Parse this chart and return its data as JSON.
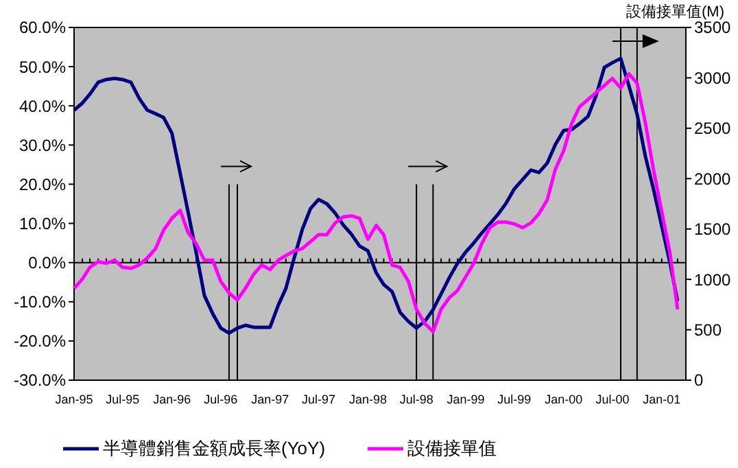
{
  "chart_data": {
    "type": "line",
    "y2label": "設備接單值(M)",
    "legend": "bottom",
    "line_style": "solid",
    "x": [
      "1995-01",
      "1995-02",
      "1995-03",
      "1995-04",
      "1995-05",
      "1995-06",
      "1995-07",
      "1995-08",
      "1995-09",
      "1995-10",
      "1995-11",
      "1995-12",
      "1996-01",
      "1996-02",
      "1996-03",
      "1996-04",
      "1996-05",
      "1996-06",
      "1996-07",
      "1996-08",
      "1996-09",
      "1996-10",
      "1996-11",
      "1996-12",
      "1997-01",
      "1997-02",
      "1997-03",
      "1997-04",
      "1997-05",
      "1997-06",
      "1997-07",
      "1997-08",
      "1997-09",
      "1997-10",
      "1997-11",
      "1997-12",
      "1998-01",
      "1998-02",
      "1998-03",
      "1998-04",
      "1998-05",
      "1998-06",
      "1998-07",
      "1998-08",
      "1998-09",
      "1998-10",
      "1998-11",
      "1998-12",
      "1999-01",
      "1999-02",
      "1999-03",
      "1999-04",
      "1999-05",
      "1999-06",
      "1999-07",
      "1999-08",
      "1999-09",
      "1999-10",
      "1999-11",
      "1999-12",
      "2000-01",
      "2000-02",
      "2000-03",
      "2000-04",
      "2000-05",
      "2000-06",
      "2000-07",
      "2000-08",
      "2000-09",
      "2000-10",
      "2000-11",
      "2000-12",
      "2001-01",
      "2001-02",
      "2001-03"
    ],
    "xlim": [
      "1995-01",
      "2001-04"
    ],
    "xticks": [
      {
        "value": "1995-01",
        "label": "Jan-95"
      },
      {
        "value": "1995-07",
        "label": "Jul-95"
      },
      {
        "value": "1996-01",
        "label": "Jan-96"
      },
      {
        "value": "1996-07",
        "label": "Jul-96"
      },
      {
        "value": "1997-01",
        "label": "Jan-97"
      },
      {
        "value": "1997-07",
        "label": "Jul-97"
      },
      {
        "value": "1998-01",
        "label": "Jan-98"
      },
      {
        "value": "1998-07",
        "label": "Jul-98"
      },
      {
        "value": "1999-01",
        "label": "Jan-99"
      },
      {
        "value": "1999-07",
        "label": "Jul-99"
      },
      {
        "value": "2000-01",
        "label": "Jan-00"
      },
      {
        "value": "2000-07",
        "label": "Jul-00"
      },
      {
        "value": "2001-01",
        "label": "Jan-01"
      }
    ],
    "ylim": [
      -30,
      60
    ],
    "yticks": [
      {
        "value": -30,
        "label": "-30.0%"
      },
      {
        "value": -20,
        "label": "-20.0%"
      },
      {
        "value": -10,
        "label": "-10.0%"
      },
      {
        "value": 0,
        "label": "0.0%"
      },
      {
        "value": 10,
        "label": "10.0%"
      },
      {
        "value": 20,
        "label": "20.0%"
      },
      {
        "value": 30,
        "label": "30.0%"
      },
      {
        "value": 40,
        "label": "40.0%"
      },
      {
        "value": 50,
        "label": "50.0%"
      },
      {
        "value": 60,
        "label": "60.0%"
      }
    ],
    "y2lim": [
      0,
      3500
    ],
    "y2ticks": [
      0,
      500,
      1000,
      1500,
      2000,
      2500,
      3000,
      3500
    ],
    "ref_lines": [
      {
        "axis": "x",
        "value": "1996-08",
        "color": "#000000"
      },
      {
        "axis": "x",
        "value": "1996-09",
        "color": "#000000"
      },
      {
        "axis": "x",
        "value": "1998-07",
        "color": "#000000"
      },
      {
        "axis": "x",
        "value": "1998-09",
        "color": "#000000"
      },
      {
        "axis": "x",
        "value": "2000-08",
        "color": "#000000"
      },
      {
        "axis": "x",
        "value": "2000-10",
        "color": "#000000"
      }
    ],
    "series": [
      {
        "name": "半導體銷售金額成長率(YoY)",
        "color": "#000080",
        "values": [
          38.9,
          40.7,
          43,
          46,
          46.7,
          47,
          46.7,
          46,
          41.9,
          38.9,
          38,
          37,
          33,
          22.7,
          13,
          2.4,
          -8.4,
          -13,
          -16.7,
          -18,
          -16.7,
          -16,
          -16.5,
          -16.5,
          -16.5,
          -10.8,
          -6.6,
          1.2,
          8.4,
          13.8,
          16.1,
          15,
          12.6,
          9.6,
          7.2,
          4.2,
          3,
          -2.6,
          -5.6,
          -7.4,
          -12.7,
          -15,
          -16.7,
          -15,
          -12,
          -8,
          -3.8,
          -0.2,
          2.7,
          5.1,
          7.5,
          9.9,
          12.3,
          15.2,
          18.8,
          21.2,
          23.6,
          23,
          25.4,
          30.1,
          33.7,
          34,
          35.5,
          37.3,
          42.6,
          49.8,
          51,
          52.1,
          45,
          37.9,
          27.1,
          18.8,
          9.3,
          -0.2,
          -9.8
        ]
      },
      {
        "name": "設備接單值",
        "color": "#ff00ff",
        "axis": "y2",
        "values": [
          911,
          1004,
          1120,
          1175,
          1160,
          1190,
          1120,
          1110,
          1143,
          1212,
          1305,
          1490,
          1606,
          1685,
          1467,
          1351,
          1190,
          1190,
          981,
          866,
          796,
          911,
          1051,
          1143,
          1097,
          1190,
          1236,
          1282,
          1305,
          1375,
          1444,
          1444,
          1560,
          1620,
          1630,
          1606,
          1398,
          1536,
          1443,
          1142,
          1119,
          980,
          703,
          564,
          481,
          703,
          819,
          888,
          1027,
          1166,
          1351,
          1513,
          1568,
          1568,
          1550,
          1513,
          1560,
          1651,
          1790,
          2091,
          2276,
          2553,
          2715,
          2785,
          2854,
          2923,
          2993,
          2900,
          3040,
          2946,
          2553,
          2091,
          1674,
          1258,
          703
        ]
      }
    ]
  }
}
